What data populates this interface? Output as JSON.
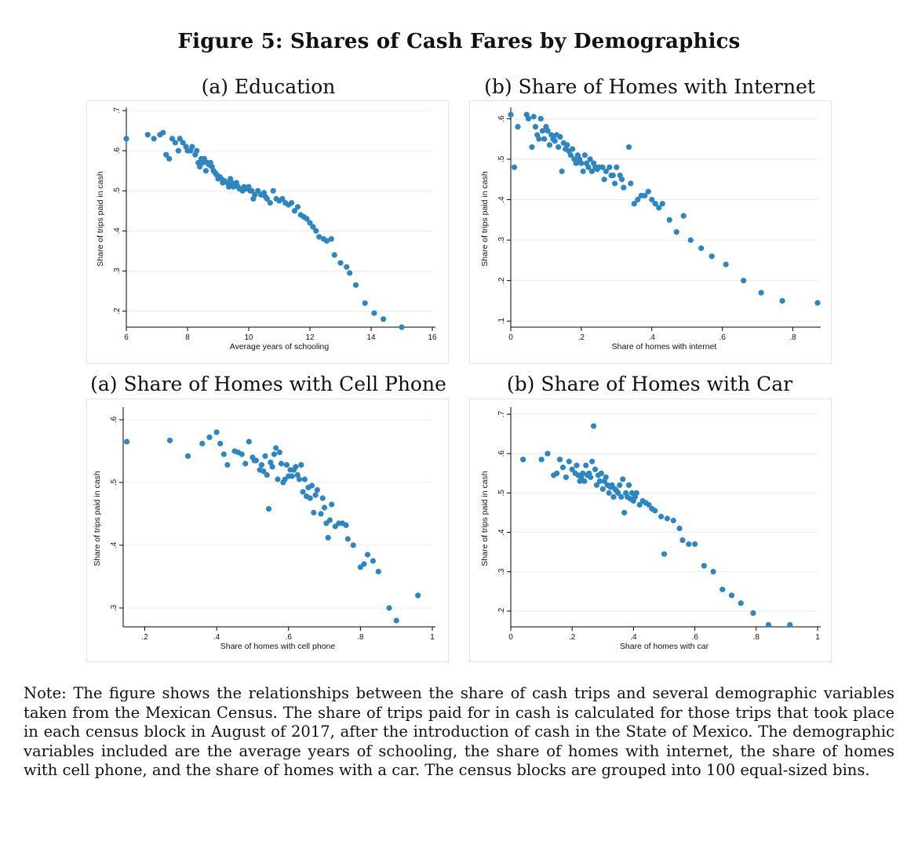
{
  "figure_title": "Figure 5: Shares of Cash Fares by Demographics",
  "panels": [
    {
      "title": "(a) Education"
    },
    {
      "title": "(b) Share of Homes with Internet"
    },
    {
      "title": "(a) Share of Homes with Cell Phone"
    },
    {
      "title": "(b) Share of Homes with Car"
    }
  ],
  "note": "Note: The figure shows the relationships between the share of cash trips and several demographic variables taken from the Mexican Census. The share of trips paid for in cash is calculated for those trips that took place in each census block in August of 2017, after the introduction of cash in the State of Mexico. The demographic variables included are the average years of schooling, the share of homes with internet, the share of homes with cell phone, and the share of homes with a car. The census blocks are grouped into 100 equal-sized bins.",
  "colors": {
    "marker": "#2e86c1",
    "grid": "#ececec",
    "axis": "#000000"
  },
  "chart_data": [
    {
      "type": "scatter",
      "xlabel": "Average years of schooling",
      "ylabel": "Share of trips paid in cash",
      "xlim": [
        6,
        16
      ],
      "ylim": [
        0.16,
        0.7
      ],
      "xticks": [
        6,
        8,
        10,
        12,
        14,
        16
      ],
      "xtick_labels": [
        "6",
        "8",
        "10",
        "12",
        "14",
        "16"
      ],
      "yticks": [
        0.2,
        0.3,
        0.4,
        0.5,
        0.6,
        0.7
      ],
      "ytick_labels": [
        ".2",
        ".3",
        ".4",
        ".5",
        ".6",
        ".7"
      ],
      "grid": true,
      "points": [
        [
          6.0,
          0.63
        ],
        [
          6.7,
          0.64
        ],
        [
          6.9,
          0.63
        ],
        [
          7.1,
          0.64
        ],
        [
          7.2,
          0.645
        ],
        [
          7.3,
          0.59
        ],
        [
          7.4,
          0.58
        ],
        [
          7.5,
          0.63
        ],
        [
          7.6,
          0.62
        ],
        [
          7.7,
          0.6
        ],
        [
          7.75,
          0.63
        ],
        [
          7.85,
          0.62
        ],
        [
          7.95,
          0.61
        ],
        [
          8.0,
          0.6
        ],
        [
          8.1,
          0.6
        ],
        [
          8.15,
          0.61
        ],
        [
          8.25,
          0.59
        ],
        [
          8.3,
          0.6
        ],
        [
          8.35,
          0.57
        ],
        [
          8.4,
          0.56
        ],
        [
          8.45,
          0.58
        ],
        [
          8.5,
          0.57
        ],
        [
          8.55,
          0.58
        ],
        [
          8.6,
          0.55
        ],
        [
          8.65,
          0.57
        ],
        [
          8.7,
          0.565
        ],
        [
          8.75,
          0.57
        ],
        [
          8.8,
          0.56
        ],
        [
          8.85,
          0.55
        ],
        [
          8.9,
          0.545
        ],
        [
          8.95,
          0.54
        ],
        [
          9.0,
          0.53
        ],
        [
          9.05,
          0.535
        ],
        [
          9.1,
          0.53
        ],
        [
          9.15,
          0.52
        ],
        [
          9.2,
          0.525
        ],
        [
          9.3,
          0.52
        ],
        [
          9.35,
          0.51
        ],
        [
          9.4,
          0.53
        ],
        [
          9.45,
          0.52
        ],
        [
          9.5,
          0.51
        ],
        [
          9.55,
          0.515
        ],
        [
          9.6,
          0.52
        ],
        [
          9.65,
          0.51
        ],
        [
          9.7,
          0.505
        ],
        [
          9.8,
          0.5
        ],
        [
          9.85,
          0.51
        ],
        [
          9.9,
          0.505
        ],
        [
          10.0,
          0.51
        ],
        [
          10.05,
          0.5
        ],
        [
          10.1,
          0.5
        ],
        [
          10.15,
          0.48
        ],
        [
          10.2,
          0.49
        ],
        [
          10.3,
          0.5
        ],
        [
          10.4,
          0.49
        ],
        [
          10.5,
          0.495
        ],
        [
          10.55,
          0.485
        ],
        [
          10.6,
          0.48
        ],
        [
          10.7,
          0.47
        ],
        [
          10.8,
          0.5
        ],
        [
          10.9,
          0.48
        ],
        [
          11.0,
          0.475
        ],
        [
          11.1,
          0.48
        ],
        [
          11.2,
          0.47
        ],
        [
          11.3,
          0.465
        ],
        [
          11.4,
          0.47
        ],
        [
          11.5,
          0.45
        ],
        [
          11.6,
          0.46
        ],
        [
          11.7,
          0.44
        ],
        [
          11.8,
          0.435
        ],
        [
          11.9,
          0.43
        ],
        [
          12.0,
          0.42
        ],
        [
          12.1,
          0.41
        ],
        [
          12.2,
          0.4
        ],
        [
          12.3,
          0.385
        ],
        [
          12.45,
          0.38
        ],
        [
          12.55,
          0.375
        ],
        [
          12.7,
          0.38
        ],
        [
          12.8,
          0.34
        ],
        [
          13.0,
          0.32
        ],
        [
          13.2,
          0.31
        ],
        [
          13.3,
          0.295
        ],
        [
          13.5,
          0.265
        ],
        [
          13.8,
          0.22
        ],
        [
          14.1,
          0.195
        ],
        [
          14.4,
          0.18
        ],
        [
          15.0,
          0.16
        ]
      ]
    },
    {
      "type": "scatter",
      "xlabel": "Share of homes with internet",
      "ylabel": "Share of trips paid in cash",
      "xlim": [
        0,
        0.87
      ],
      "ylim": [
        0.085,
        0.62
      ],
      "xticks": [
        0,
        0.2,
        0.4,
        0.6,
        0.8
      ],
      "xtick_labels": [
        "0",
        ".2",
        ".4",
        ".6",
        ".8"
      ],
      "yticks": [
        0.1,
        0.2,
        0.3,
        0.4,
        0.5,
        0.6
      ],
      "ytick_labels": [
        ".1",
        ".2",
        ".3",
        ".4",
        ".5",
        ".6"
      ],
      "grid": true,
      "points": [
        [
          0.0,
          0.61
        ],
        [
          0.01,
          0.48
        ],
        [
          0.02,
          0.58
        ],
        [
          0.045,
          0.61
        ],
        [
          0.05,
          0.6
        ],
        [
          0.06,
          0.53
        ],
        [
          0.065,
          0.605
        ],
        [
          0.07,
          0.58
        ],
        [
          0.075,
          0.56
        ],
        [
          0.08,
          0.55
        ],
        [
          0.085,
          0.6
        ],
        [
          0.09,
          0.57
        ],
        [
          0.095,
          0.55
        ],
        [
          0.1,
          0.58
        ],
        [
          0.105,
          0.57
        ],
        [
          0.11,
          0.535
        ],
        [
          0.115,
          0.56
        ],
        [
          0.12,
          0.55
        ],
        [
          0.125,
          0.545
        ],
        [
          0.13,
          0.56
        ],
        [
          0.135,
          0.53
        ],
        [
          0.14,
          0.555
        ],
        [
          0.145,
          0.47
        ],
        [
          0.15,
          0.54
        ],
        [
          0.155,
          0.525
        ],
        [
          0.16,
          0.535
        ],
        [
          0.165,
          0.52
        ],
        [
          0.17,
          0.51
        ],
        [
          0.175,
          0.525
        ],
        [
          0.18,
          0.5
        ],
        [
          0.185,
          0.49
        ],
        [
          0.19,
          0.51
        ],
        [
          0.195,
          0.5
        ],
        [
          0.2,
          0.49
        ],
        [
          0.205,
          0.47
        ],
        [
          0.21,
          0.51
        ],
        [
          0.215,
          0.49
        ],
        [
          0.22,
          0.48
        ],
        [
          0.225,
          0.5
        ],
        [
          0.23,
          0.47
        ],
        [
          0.235,
          0.49
        ],
        [
          0.24,
          0.48
        ],
        [
          0.245,
          0.475
        ],
        [
          0.25,
          0.48
        ],
        [
          0.26,
          0.48
        ],
        [
          0.265,
          0.45
        ],
        [
          0.27,
          0.47
        ],
        [
          0.28,
          0.48
        ],
        [
          0.285,
          0.46
        ],
        [
          0.29,
          0.46
        ],
        [
          0.295,
          0.44
        ],
        [
          0.3,
          0.48
        ],
        [
          0.31,
          0.46
        ],
        [
          0.315,
          0.45
        ],
        [
          0.32,
          0.43
        ],
        [
          0.335,
          0.53
        ],
        [
          0.34,
          0.44
        ],
        [
          0.35,
          0.39
        ],
        [
          0.36,
          0.4
        ],
        [
          0.37,
          0.41
        ],
        [
          0.38,
          0.41
        ],
        [
          0.39,
          0.42
        ],
        [
          0.4,
          0.4
        ],
        [
          0.41,
          0.39
        ],
        [
          0.42,
          0.38
        ],
        [
          0.43,
          0.39
        ],
        [
          0.45,
          0.35
        ],
        [
          0.47,
          0.32
        ],
        [
          0.49,
          0.36
        ],
        [
          0.51,
          0.3
        ],
        [
          0.54,
          0.28
        ],
        [
          0.57,
          0.26
        ],
        [
          0.61,
          0.24
        ],
        [
          0.66,
          0.2
        ],
        [
          0.71,
          0.17
        ],
        [
          0.77,
          0.15
        ],
        [
          0.87,
          0.145
        ]
      ]
    },
    {
      "type": "scatter",
      "xlabel": "Share of homes with cell phone",
      "ylabel": "Share of trips paid in cash",
      "xlim": [
        0.14,
        1.0
      ],
      "ylim": [
        0.27,
        0.615
      ],
      "xticks": [
        0.2,
        0.4,
        0.6,
        0.8,
        1.0
      ],
      "xtick_labels": [
        ".2",
        ".4",
        ".6",
        ".8",
        "1"
      ],
      "yticks": [
        0.3,
        0.4,
        0.5,
        0.6
      ],
      "ytick_labels": [
        ".3",
        ".4",
        ".5",
        ".6"
      ],
      "grid": true,
      "points": [
        [
          0.15,
          0.565
        ],
        [
          0.27,
          0.567
        ],
        [
          0.32,
          0.542
        ],
        [
          0.36,
          0.562
        ],
        [
          0.38,
          0.572
        ],
        [
          0.4,
          0.58
        ],
        [
          0.41,
          0.562
        ],
        [
          0.42,
          0.545
        ],
        [
          0.43,
          0.528
        ],
        [
          0.45,
          0.55
        ],
        [
          0.46,
          0.548
        ],
        [
          0.47,
          0.545
        ],
        [
          0.48,
          0.53
        ],
        [
          0.49,
          0.565
        ],
        [
          0.5,
          0.54
        ],
        [
          0.505,
          0.535
        ],
        [
          0.51,
          0.535
        ],
        [
          0.52,
          0.52
        ],
        [
          0.525,
          0.528
        ],
        [
          0.53,
          0.518
        ],
        [
          0.535,
          0.542
        ],
        [
          0.54,
          0.512
        ],
        [
          0.545,
          0.458
        ],
        [
          0.55,
          0.532
        ],
        [
          0.555,
          0.525
        ],
        [
          0.56,
          0.545
        ],
        [
          0.565,
          0.555
        ],
        [
          0.57,
          0.505
        ],
        [
          0.575,
          0.548
        ],
        [
          0.58,
          0.53
        ],
        [
          0.585,
          0.5
        ],
        [
          0.59,
          0.505
        ],
        [
          0.595,
          0.528
        ],
        [
          0.6,
          0.51
        ],
        [
          0.605,
          0.52
        ],
        [
          0.61,
          0.51
        ],
        [
          0.615,
          0.52
        ],
        [
          0.62,
          0.525
        ],
        [
          0.625,
          0.512
        ],
        [
          0.63,
          0.505
        ],
        [
          0.635,
          0.528
        ],
        [
          0.64,
          0.485
        ],
        [
          0.645,
          0.505
        ],
        [
          0.65,
          0.478
        ],
        [
          0.655,
          0.492
        ],
        [
          0.66,
          0.475
        ],
        [
          0.665,
          0.495
        ],
        [
          0.67,
          0.452
        ],
        [
          0.675,
          0.48
        ],
        [
          0.68,
          0.488
        ],
        [
          0.69,
          0.45
        ],
        [
          0.695,
          0.475
        ],
        [
          0.7,
          0.46
        ],
        [
          0.705,
          0.435
        ],
        [
          0.71,
          0.412
        ],
        [
          0.715,
          0.44
        ],
        [
          0.72,
          0.465
        ],
        [
          0.73,
          0.43
        ],
        [
          0.74,
          0.435
        ],
        [
          0.75,
          0.435
        ],
        [
          0.76,
          0.432
        ],
        [
          0.765,
          0.41
        ],
        [
          0.78,
          0.4
        ],
        [
          0.8,
          0.365
        ],
        [
          0.81,
          0.37
        ],
        [
          0.82,
          0.385
        ],
        [
          0.835,
          0.375
        ],
        [
          0.85,
          0.358
        ],
        [
          0.88,
          0.3
        ],
        [
          0.9,
          0.28
        ],
        [
          0.96,
          0.32
        ]
      ]
    },
    {
      "type": "scatter",
      "xlabel": "Share of homes with car",
      "ylabel": "Share of trips paid in cash",
      "xlim": [
        0,
        1.0
      ],
      "ylim": [
        0.16,
        0.71
      ],
      "xticks": [
        0,
        0.2,
        0.4,
        0.6,
        0.8,
        1.0
      ],
      "xtick_labels": [
        "0",
        ".2",
        ".4",
        ".6",
        ".8",
        "1"
      ],
      "yticks": [
        0.2,
        0.3,
        0.4,
        0.5,
        0.6,
        0.7
      ],
      "ytick_labels": [
        ".2",
        ".3",
        ".4",
        ".5",
        ".6",
        ".7"
      ],
      "grid": true,
      "points": [
        [
          0.04,
          0.585
        ],
        [
          0.1,
          0.585
        ],
        [
          0.12,
          0.6
        ],
        [
          0.14,
          0.545
        ],
        [
          0.15,
          0.55
        ],
        [
          0.16,
          0.585
        ],
        [
          0.17,
          0.565
        ],
        [
          0.18,
          0.54
        ],
        [
          0.19,
          0.58
        ],
        [
          0.2,
          0.56
        ],
        [
          0.21,
          0.55
        ],
        [
          0.215,
          0.57
        ],
        [
          0.22,
          0.545
        ],
        [
          0.225,
          0.53
        ],
        [
          0.23,
          0.54
        ],
        [
          0.235,
          0.55
        ],
        [
          0.24,
          0.53
        ],
        [
          0.245,
          0.57
        ],
        [
          0.25,
          0.545
        ],
        [
          0.255,
          0.55
        ],
        [
          0.26,
          0.54
        ],
        [
          0.265,
          0.58
        ],
        [
          0.27,
          0.67
        ],
        [
          0.275,
          0.56
        ],
        [
          0.28,
          0.52
        ],
        [
          0.285,
          0.545
        ],
        [
          0.29,
          0.53
        ],
        [
          0.295,
          0.55
        ],
        [
          0.3,
          0.51
        ],
        [
          0.305,
          0.53
        ],
        [
          0.31,
          0.54
        ],
        [
          0.315,
          0.52
        ],
        [
          0.32,
          0.5
        ],
        [
          0.325,
          0.515
        ],
        [
          0.33,
          0.52
        ],
        [
          0.335,
          0.49
        ],
        [
          0.34,
          0.51
        ],
        [
          0.345,
          0.505
        ],
        [
          0.35,
          0.5
        ],
        [
          0.355,
          0.52
        ],
        [
          0.36,
          0.49
        ],
        [
          0.365,
          0.535
        ],
        [
          0.37,
          0.45
        ],
        [
          0.375,
          0.5
        ],
        [
          0.38,
          0.49
        ],
        [
          0.385,
          0.52
        ],
        [
          0.39,
          0.485
        ],
        [
          0.395,
          0.5
        ],
        [
          0.4,
          0.48
        ],
        [
          0.405,
          0.49
        ],
        [
          0.41,
          0.5
        ],
        [
          0.42,
          0.47
        ],
        [
          0.43,
          0.48
        ],
        [
          0.44,
          0.475
        ],
        [
          0.45,
          0.47
        ],
        [
          0.46,
          0.46
        ],
        [
          0.47,
          0.455
        ],
        [
          0.49,
          0.44
        ],
        [
          0.5,
          0.345
        ],
        [
          0.51,
          0.435
        ],
        [
          0.53,
          0.43
        ],
        [
          0.55,
          0.41
        ],
        [
          0.56,
          0.38
        ],
        [
          0.58,
          0.37
        ],
        [
          0.6,
          0.37
        ],
        [
          0.63,
          0.315
        ],
        [
          0.66,
          0.3
        ],
        [
          0.69,
          0.255
        ],
        [
          0.72,
          0.24
        ],
        [
          0.75,
          0.22
        ],
        [
          0.79,
          0.195
        ],
        [
          0.84,
          0.165
        ],
        [
          0.91,
          0.165
        ]
      ]
    }
  ]
}
